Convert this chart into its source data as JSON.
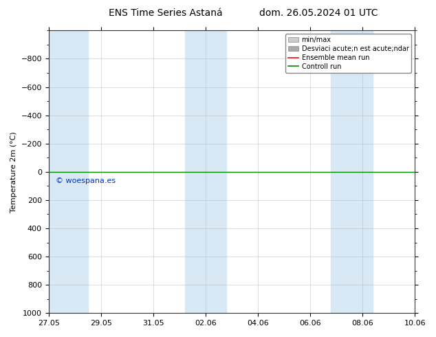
{
  "title_left": "ENS Time Series Astaná",
  "title_right": "dom. 26.05.2024 01 UTC",
  "ylabel": "Temperature 2m (°C)",
  "ylim_bottom": 1000,
  "ylim_top": -1000,
  "yticks": [
    -800,
    -600,
    -400,
    -200,
    0,
    200,
    400,
    600,
    800,
    1000
  ],
  "x_start": 0,
  "x_end": 14,
  "xtick_labels": [
    "27.05",
    "29.05",
    "31.05",
    "02.06",
    "04.06",
    "06.06",
    "08.06",
    "10.06"
  ],
  "xtick_positions": [
    0,
    2,
    4,
    6,
    8,
    10,
    12,
    14
  ],
  "background_color": "#ffffff",
  "plot_bg_color": "#ffffff",
  "green_line_y": 0,
  "watermark": "© woespana.es",
  "watermark_color": "#0033cc",
  "font_size": 8,
  "title_font_size": 10,
  "shaded_bg_color": "#d8e8f4",
  "shaded_columns": [
    [
      0,
      1.5
    ],
    [
      5.2,
      6.0
    ],
    [
      6.0,
      6.8
    ],
    [
      10.8,
      11.6
    ],
    [
      11.6,
      12.4
    ]
  ],
  "legend_labels": [
    "min/max",
    "Desviaci acute;n est acute;ndar",
    "Ensemble mean run",
    "Controll run"
  ],
  "legend_patch_colors": [
    "#cccccc",
    "#aaaaaa"
  ],
  "legend_line_colors": [
    "#ff0000",
    "#008800"
  ],
  "grid_color": "#bbbbbb",
  "tick_color": "#000000"
}
